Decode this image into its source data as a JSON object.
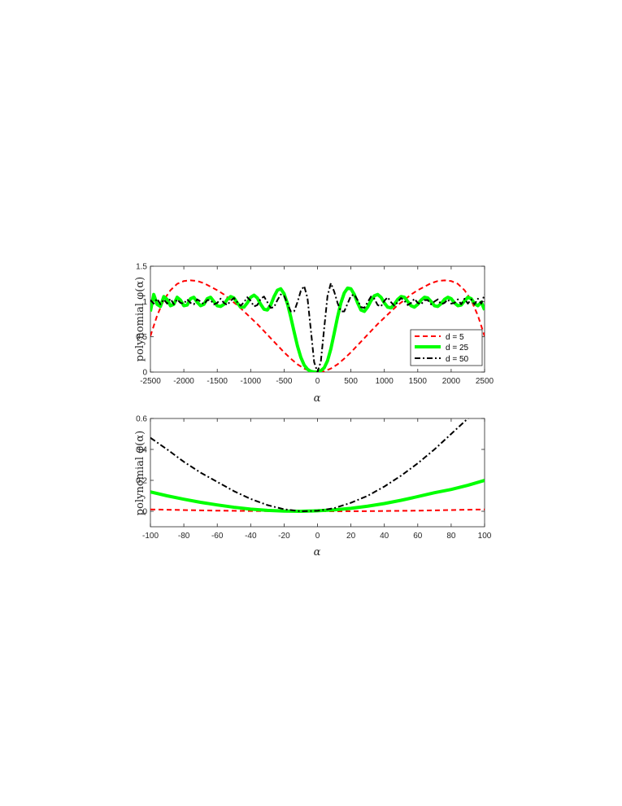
{
  "chart_data": [
    {
      "type": "line",
      "xlabel": "α",
      "ylabel": "polynomial φ(α)",
      "xlim": [
        -2500,
        2500
      ],
      "ylim": [
        0,
        1.5
      ],
      "xticks": [
        -2500,
        -2000,
        -1500,
        -1000,
        -500,
        0,
        500,
        1000,
        1500,
        2000,
        2500
      ],
      "yticks": [
        0,
        0.5,
        1,
        1.5
      ],
      "legend": "inside-right",
      "series": [
        {
          "name": "d = 5",
          "color": "#ff0000",
          "style": "dashed",
          "x": [
            -2500,
            -2400,
            -2300,
            -2200,
            -2100,
            -2000,
            -1900,
            -1800,
            -1700,
            -1600,
            -1500,
            -1400,
            -1300,
            -1200,
            -1100,
            -1000,
            -900,
            -800,
            -700,
            -600,
            -500,
            -400,
            -300,
            -200,
            -100,
            0,
            100,
            200,
            300,
            400,
            500,
            600,
            700,
            800,
            900,
            1000,
            1100,
            1200,
            1300,
            1400,
            1500,
            1600,
            1700,
            1800,
            1900,
            2000,
            2100,
            2200,
            2300,
            2400,
            2500
          ],
          "y": [
            0.51,
            0.8,
            1.02,
            1.16,
            1.25,
            1.29,
            1.3,
            1.29,
            1.26,
            1.21,
            1.16,
            1.1,
            1.02,
            0.95,
            0.86,
            0.77,
            0.68,
            0.58,
            0.48,
            0.38,
            0.28,
            0.19,
            0.11,
            0.05,
            0.01,
            0.0,
            0.01,
            0.05,
            0.11,
            0.19,
            0.28,
            0.38,
            0.48,
            0.58,
            0.68,
            0.77,
            0.86,
            0.95,
            1.02,
            1.1,
            1.16,
            1.21,
            1.26,
            1.29,
            1.3,
            1.29,
            1.25,
            1.16,
            1.02,
            0.8,
            0.51
          ]
        },
        {
          "name": "d = 25",
          "color": "#00ff00",
          "style": "solid",
          "x": [
            -2500,
            -2450,
            -2400,
            -2350,
            -2300,
            -2250,
            -2200,
            -2150,
            -2100,
            -2050,
            -2000,
            -1950,
            -1900,
            -1850,
            -1800,
            -1750,
            -1700,
            -1650,
            -1600,
            -1550,
            -1500,
            -1450,
            -1400,
            -1350,
            -1300,
            -1250,
            -1200,
            -1150,
            -1100,
            -1050,
            -1000,
            -950,
            -900,
            -850,
            -800,
            -750,
            -700,
            -650,
            -600,
            -550,
            -500,
            -450,
            -400,
            -350,
            -300,
            -250,
            -200,
            -150,
            -100,
            -50,
            0,
            50,
            100,
            150,
            200,
            250,
            300,
            350,
            400,
            450,
            500,
            550,
            600,
            650,
            700,
            750,
            800,
            850,
            900,
            950,
            1000,
            1050,
            1100,
            1150,
            1200,
            1250,
            1300,
            1350,
            1400,
            1450,
            1500,
            1550,
            1600,
            1650,
            1700,
            1750,
            1800,
            1850,
            1900,
            1950,
            2000,
            2050,
            2100,
            2150,
            2200,
            2250,
            2300,
            2350,
            2400,
            2450,
            2500
          ],
          "y": [
            0.86,
            1.1,
            0.96,
            0.93,
            1.07,
            1.03,
            0.94,
            0.96,
            1.06,
            1.02,
            0.94,
            0.95,
            1.04,
            1.06,
            0.99,
            0.94,
            0.96,
            1.04,
            1.06,
            1.0,
            0.94,
            0.93,
            0.96,
            1.03,
            1.07,
            1.05,
            0.98,
            0.92,
            0.92,
            0.98,
            1.06,
            1.09,
            1.05,
            0.96,
            0.89,
            0.88,
            0.95,
            1.07,
            1.16,
            1.18,
            1.11,
            0.97,
            0.78,
            0.57,
            0.37,
            0.21,
            0.1,
            0.04,
            0.01,
            0.0,
            0.0,
            0.02,
            0.06,
            0.16,
            0.33,
            0.55,
            0.78,
            0.98,
            1.12,
            1.19,
            1.18,
            1.1,
            0.98,
            0.88,
            0.86,
            0.92,
            1.01,
            1.08,
            1.1,
            1.06,
            0.98,
            0.92,
            0.91,
            0.96,
            1.03,
            1.07,
            1.06,
            1.0,
            0.94,
            0.92,
            0.96,
            1.02,
            1.06,
            1.05,
            1.0,
            0.94,
            0.93,
            0.97,
            1.03,
            1.06,
            1.04,
            0.98,
            0.94,
            0.95,
            1.01,
            1.06,
            1.04,
            0.97,
            0.94,
            0.99,
            0.88
          ]
        },
        {
          "name": "d = 50",
          "color": "#000000",
          "style": "dashdot",
          "x": [
            -2500,
            -2450,
            -2400,
            -2350,
            -2300,
            -2250,
            -2200,
            -2150,
            -2100,
            -2050,
            -2000,
            -1950,
            -1900,
            -1850,
            -1800,
            -1750,
            -1700,
            -1650,
            -1600,
            -1550,
            -1500,
            -1450,
            -1400,
            -1350,
            -1300,
            -1250,
            -1200,
            -1150,
            -1100,
            -1050,
            -1000,
            -950,
            -900,
            -850,
            -800,
            -750,
            -700,
            -650,
            -600,
            -550,
            -500,
            -450,
            -400,
            -350,
            -300,
            -250,
            -200,
            -150,
            -100,
            -50,
            0,
            50,
            100,
            150,
            200,
            250,
            300,
            350,
            400,
            450,
            500,
            550,
            600,
            650,
            700,
            750,
            800,
            850,
            900,
            950,
            1000,
            1050,
            1100,
            1150,
            1200,
            1250,
            1300,
            1350,
            1400,
            1450,
            1500,
            1550,
            1600,
            1650,
            1700,
            1750,
            1800,
            1850,
            1900,
            1950,
            2000,
            2050,
            2100,
            2150,
            2200,
            2250,
            2300,
            2350,
            2400,
            2450,
            2500
          ],
          "y": [
            1.02,
            0.97,
            1.04,
            0.96,
            1.03,
            0.97,
            1.04,
            0.96,
            1.03,
            0.98,
            0.97,
            1.03,
            0.98,
            0.96,
            1.03,
            1.0,
            0.96,
            1.02,
            1.02,
            0.96,
            0.98,
            1.04,
            0.98,
            0.95,
            1.01,
            1.05,
            0.99,
            0.94,
            0.99,
            1.06,
            1.01,
            0.93,
            0.95,
            1.04,
            1.07,
            0.99,
            0.91,
            0.92,
            1.02,
            1.1,
            1.08,
            0.97,
            0.86,
            0.86,
            0.99,
            1.15,
            1.22,
            1.05,
            0.6,
            0.14,
            0.0,
            0.15,
            0.62,
            1.08,
            1.26,
            1.14,
            0.98,
            0.86,
            0.86,
            0.97,
            1.08,
            1.1,
            1.02,
            0.92,
            0.91,
            0.99,
            1.07,
            1.04,
            0.95,
            0.93,
            1.01,
            1.06,
            0.99,
            0.94,
            0.99,
            1.05,
            1.01,
            0.95,
            0.98,
            1.04,
            0.98,
            0.96,
            1.02,
            1.02,
            0.96,
            1.0,
            1.03,
            0.96,
            0.98,
            1.03,
            0.97,
            0.98,
            1.03,
            0.96,
            1.04,
            0.97,
            1.03,
            0.96,
            1.04,
            0.97,
            1.1
          ]
        }
      ]
    },
    {
      "type": "line",
      "xlabel": "α",
      "ylabel": "polynomial φ(α)",
      "xlim": [
        -100,
        100
      ],
      "ylim": [
        -0.1,
        0.6
      ],
      "xticks": [
        -100,
        -80,
        -60,
        -40,
        -20,
        0,
        20,
        40,
        60,
        80,
        100
      ],
      "yticks": [
        0,
        0.2,
        0.4,
        0.6
      ],
      "series": [
        {
          "name": "d = 5",
          "color": "#ff0000",
          "style": "dashed",
          "x": [
            -100,
            -90,
            -80,
            -70,
            -60,
            -50,
            -40,
            -30,
            -20,
            -10,
            0,
            10,
            20,
            30,
            40,
            50,
            60,
            70,
            80,
            90,
            100
          ],
          "y": [
            0.012,
            0.01,
            0.008,
            0.006,
            0.004,
            0.003,
            0.002,
            0.001,
            0.0005,
            0.0001,
            0.0,
            0.0001,
            0.0005,
            0.001,
            0.002,
            0.003,
            0.004,
            0.006,
            0.008,
            0.01,
            0.012
          ]
        },
        {
          "name": "d = 25",
          "color": "#00ff00",
          "style": "solid",
          "x": [
            -100,
            -90,
            -80,
            -70,
            -60,
            -50,
            -40,
            -30,
            -20,
            -10,
            0,
            10,
            20,
            30,
            40,
            50,
            60,
            70,
            80,
            90,
            100
          ],
          "y": [
            0.125,
            0.1,
            0.078,
            0.058,
            0.041,
            0.026,
            0.014,
            0.006,
            0.001,
            0.0,
            0.003,
            0.009,
            0.019,
            0.033,
            0.05,
            0.071,
            0.095,
            0.12,
            0.141,
            0.168,
            0.2
          ]
        },
        {
          "name": "d = 50",
          "color": "#000000",
          "style": "dashdot",
          "x": [
            -100,
            -90,
            -80,
            -70,
            -60,
            -50,
            -40,
            -30,
            -20,
            -10,
            0,
            10,
            20,
            30,
            40,
            50,
            60,
            70,
            80,
            90,
            100
          ],
          "y": [
            0.475,
            0.4,
            0.32,
            0.25,
            0.19,
            0.13,
            0.08,
            0.04,
            0.013,
            0.0,
            0.003,
            0.02,
            0.055,
            0.1,
            0.16,
            0.23,
            0.31,
            0.4,
            0.5,
            0.6,
            0.7
          ]
        }
      ]
    }
  ]
}
